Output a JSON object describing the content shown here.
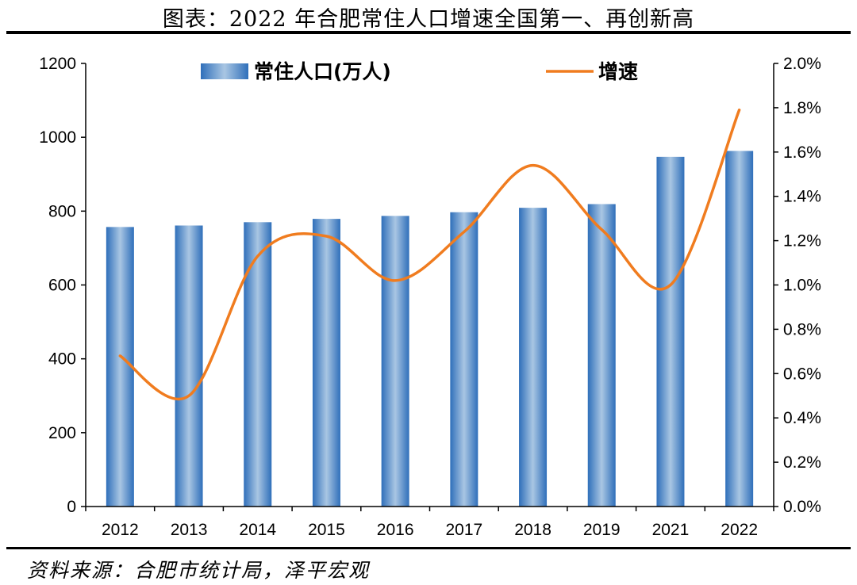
{
  "title": "图表：2022 年合肥常住人口增速全国第一、再创新高",
  "source": "资料来源：合肥市统计局，泽平宏观",
  "colors": {
    "bar": "#3a7cc4",
    "bar_light": "#a9c6e3",
    "line": "#f07c1f",
    "axis": "#000000"
  },
  "chart_data": {
    "type": "bar+line",
    "categories": [
      "2012",
      "2013",
      "2014",
      "2015",
      "2016",
      "2017",
      "2018",
      "2019",
      "2021",
      "2022"
    ],
    "series": [
      {
        "name": "常住人口(万人)",
        "type": "bar",
        "axis": "left",
        "values": [
          757,
          761,
          770,
          779,
          787,
          797,
          809,
          819,
          947,
          963
        ]
      },
      {
        "name": "增速",
        "type": "line",
        "axis": "right",
        "values": [
          0.68,
          0.5,
          1.13,
          1.22,
          1.02,
          1.24,
          1.54,
          1.25,
          1.0,
          1.79
        ]
      }
    ],
    "y_left": {
      "min": 0,
      "max": 1200,
      "ticks": [
        "0",
        "200",
        "400",
        "600",
        "800",
        "1000",
        "1200"
      ]
    },
    "y_right": {
      "min": 0,
      "max": 2.0,
      "ticks": [
        "0.0%",
        "0.2%",
        "0.4%",
        "0.6%",
        "0.8%",
        "1.0%",
        "1.2%",
        "1.4%",
        "1.6%",
        "1.8%",
        "2.0%"
      ]
    },
    "legend": {
      "placement": "top",
      "entries": [
        "常住人口(万人)",
        "增速"
      ]
    },
    "grid": false
  }
}
